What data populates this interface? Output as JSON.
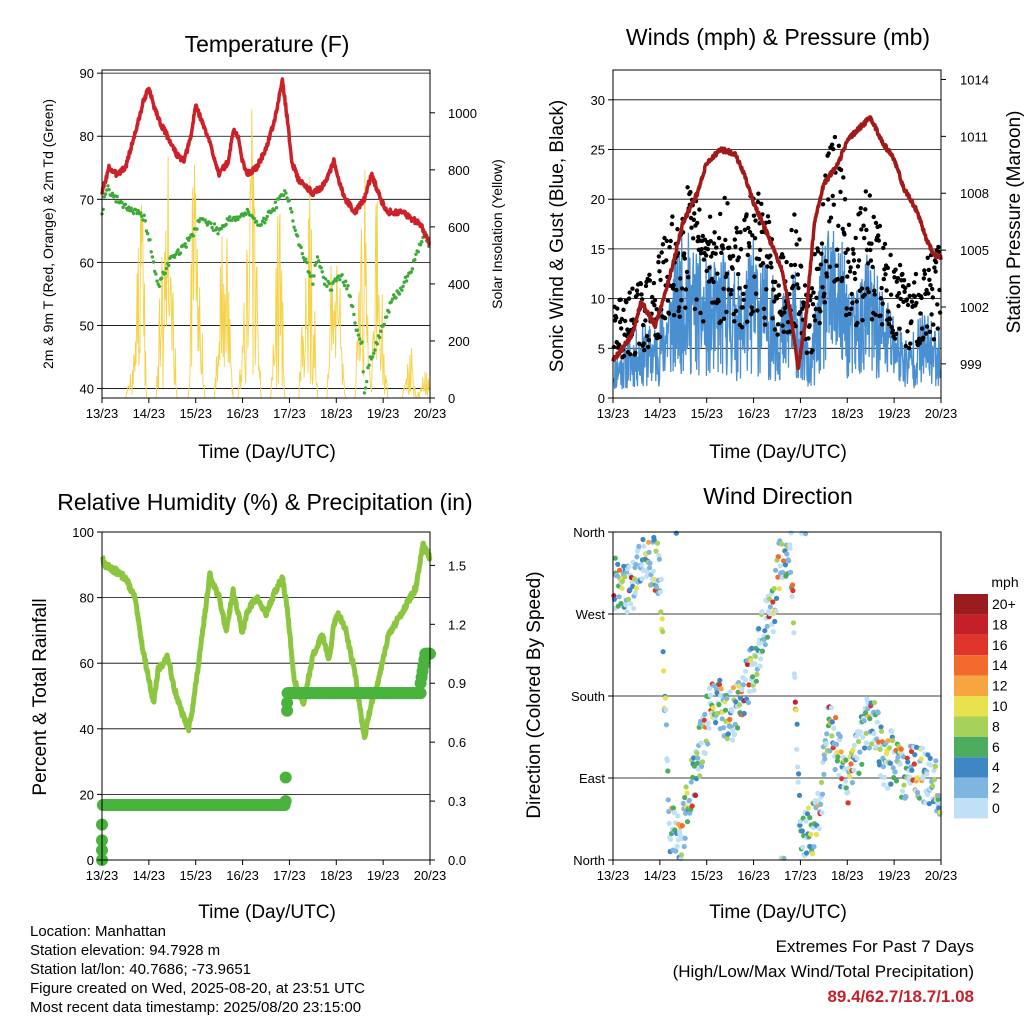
{
  "colors": {
    "temp": "#cc2128",
    "temp9": "#f08030",
    "dew": "#3daa38",
    "solar": "#f5d24a",
    "wind": "#4a8fcf",
    "gust": "#000000",
    "pressure": "#a01a1a",
    "rh": "#8cc640",
    "precip": "#4ab33e",
    "extreme": "#c8202a"
  },
  "x_tick_labels": [
    "13/23",
    "14/23",
    "15/23",
    "16/23",
    "17/23",
    "18/23",
    "19/23",
    "20/23"
  ],
  "panels": {
    "temperature": {
      "title": "Temperature (F)",
      "xlabel": "Time (Day/UTC)",
      "ylabel_left": "2m & 9m T (Red, Orange) & 2m Td (Green)",
      "ylabel_right": "Solar Insolation (Yellow)",
      "left_ticks": [
        "40",
        "50",
        "60",
        "70",
        "80",
        "90"
      ],
      "right_ticks": [
        "0",
        "200",
        "400",
        "600",
        "800",
        "1000"
      ]
    },
    "wind": {
      "title": "Winds (mph) & Pressure (mb)",
      "xlabel": "Time (Day/UTC)",
      "ylabel_left": "Sonic Wind & Gust (Blue, Black)",
      "ylabel_right": "Station Pressure (Maroon)",
      "left_ticks": [
        "0",
        "5",
        "10",
        "15",
        "20",
        "25",
        "30"
      ],
      "right_ticks": [
        "999",
        "1002",
        "1005",
        "1008",
        "1011",
        "1014"
      ]
    },
    "humidity": {
      "title": "Relative Humidity (%) & Precipitation (in)",
      "xlabel": "Time (Day/UTC)",
      "ylabel_left": "Percent & Total Rainfall",
      "left_ticks": [
        "0",
        "20",
        "40",
        "60",
        "80",
        "100"
      ],
      "right_ticks": [
        "0.0",
        "0.3",
        "0.6",
        "0.9",
        "1.2",
        "1.5"
      ]
    },
    "direction": {
      "title": "Wind Direction",
      "xlabel": "Time (Day/UTC)",
      "ylabel_left": "Direction (Colored By Speed)",
      "left_ticks": [
        "North",
        "East",
        "South",
        "West",
        "North"
      ],
      "legend_title": "mph",
      "legend_labels": [
        "20+",
        "18",
        "16",
        "14",
        "12",
        "10",
        "8",
        "6",
        "4",
        "2",
        "0"
      ],
      "legend_colors": [
        "#9b1c1f",
        "#c4202a",
        "#e0352a",
        "#f26a2c",
        "#f7a540",
        "#e8e24e",
        "#a6d25a",
        "#4cad5e",
        "#3f86c4",
        "#7fb6e0",
        "#bfe0f5"
      ]
    }
  },
  "chart_data": [
    {
      "type": "line",
      "title": "Temperature (F)",
      "xlabel": "Time (Day/UTC)",
      "ylabel": "2m & 9m T (Red, Orange) & 2m Td (Green)",
      "y2label": "Solar Insolation (Yellow)",
      "xlim": [
        0,
        7
      ],
      "ylim": [
        38.5,
        90.5
      ],
      "y2lim": [
        0,
        1150
      ],
      "series": [
        {
          "axis": "left",
          "x": [
            0,
            0.15,
            0.3,
            0.5,
            0.65,
            0.8,
            0.9,
            1.0,
            1.1,
            1.25,
            1.4,
            1.6,
            1.75,
            1.9,
            2.0,
            2.1,
            2.3,
            2.5,
            2.7,
            2.8,
            2.9,
            3.0,
            3.1,
            3.3,
            3.5,
            3.7,
            3.85,
            3.95,
            4.05,
            4.2,
            4.5,
            4.7,
            4.85,
            4.95,
            5.05,
            5.2,
            5.4,
            5.6,
            5.75,
            5.85,
            5.95,
            6.1,
            6.4,
            6.6,
            6.8,
            7.0
          ],
          "y": [
            71,
            75,
            74,
            75,
            79,
            83,
            86,
            87.5,
            85,
            82,
            80,
            77,
            76,
            80,
            85,
            83,
            79,
            74,
            76,
            81,
            80,
            76,
            74,
            75,
            78,
            83,
            89,
            83,
            76,
            73,
            71,
            72,
            74,
            76,
            73,
            70,
            68,
            70,
            74,
            72,
            70,
            68,
            68,
            67,
            66,
            63
          ]
        },
        {
          "axis": "left",
          "x": [
            0,
            0.1,
            0.3,
            0.5,
            0.7,
            0.9,
            1.0,
            1.1,
            1.2,
            1.3,
            1.5,
            1.7,
            1.9,
            2.1,
            2.3,
            2.5,
            2.7,
            2.9,
            3.1,
            3.3,
            3.5,
            3.7,
            3.9,
            4.0,
            4.1,
            4.2,
            4.4,
            4.5,
            4.6,
            4.75,
            4.9,
            5.1,
            5.3,
            5.4,
            5.55,
            5.6,
            5.7,
            5.85,
            6.0,
            6.2,
            6.4,
            6.6,
            6.8,
            6.9,
            7.0
          ],
          "y": [
            68,
            72,
            70,
            69,
            68,
            67,
            64,
            60,
            56,
            58,
            61,
            62,
            64,
            67,
            66,
            65,
            67,
            67,
            68,
            66,
            67,
            69,
            71,
            70,
            66,
            63,
            59,
            57,
            61,
            57,
            56,
            58,
            55,
            50,
            47,
            39,
            44,
            47,
            50,
            54,
            56,
            59,
            63,
            65,
            61
          ]
        },
        {
          "axis": "right",
          "x": [
            0.5,
            0.7,
            0.85,
            0.95,
            1.15,
            1.4,
            1.6,
            1.85,
            1.95,
            2.2,
            2.4,
            2.6,
            2.8,
            2.9,
            3.2,
            3.4,
            3.6,
            3.8,
            3.9,
            4.2,
            4.4,
            4.6,
            4.8,
            4.95,
            5.2,
            5.4,
            5.6,
            5.75,
            5.85,
            6.1,
            6.4,
            6.6,
            6.7,
            6.9
          ],
          "y": [
            0,
            180,
            950,
            0,
            0,
            1100,
            0,
            0,
            1000,
            0,
            0,
            880,
            0,
            0,
            1020,
            0,
            0,
            900,
            0,
            0,
            1050,
            0,
            0,
            880,
            0,
            0,
            1000,
            0,
            900,
            0,
            0,
            200,
            0,
            100
          ]
        }
      ]
    },
    {
      "type": "line",
      "title": "Winds (mph) & Pressure (mb)",
      "xlabel": "Time (Day/UTC)",
      "ylabel": "Sonic Wind & Gust (Blue, Black)",
      "y2label": "Station Pressure (Maroon)",
      "xlim": [
        0,
        7
      ],
      "ylim": [
        0,
        33
      ],
      "y2lim": [
        997.2,
        1014.5
      ],
      "series": [
        {
          "axis": "left",
          "x": [
            0,
            0.3,
            0.6,
            0.9,
            1.2,
            1.5,
            1.8,
            2.1,
            2.4,
            2.7,
            3.0,
            3.3,
            3.6,
            3.9,
            4.2,
            4.5,
            4.8,
            5.1,
            5.4,
            5.7,
            6.0,
            6.3,
            6.6,
            6.9
          ],
          "y": [
            3,
            4,
            5,
            5,
            8,
            12,
            10,
            9,
            10,
            8,
            11,
            9,
            7,
            9,
            3,
            11,
            12,
            7,
            10,
            8,
            6,
            4,
            6,
            5
          ]
        },
        {
          "axis": "left",
          "x": [
            0,
            0.3,
            0.6,
            0.9,
            1.2,
            1.5,
            1.8,
            2.1,
            2.4,
            2.7,
            3.0,
            3.3,
            3.6,
            3.9,
            4.2,
            4.5,
            4.8,
            5.1,
            5.4,
            5.7,
            6.0,
            6.3,
            6.6,
            6.9
          ],
          "y": [
            8,
            9,
            10,
            11,
            15,
            19,
            17,
            16,
            17,
            14,
            18,
            16,
            13,
            16,
            8,
            20,
            23,
            14,
            18,
            15,
            12,
            10,
            12,
            13
          ]
        },
        {
          "axis": "right",
          "x": [
            0,
            0.2,
            0.4,
            0.6,
            0.9,
            1.2,
            1.5,
            1.8,
            2.0,
            2.3,
            2.6,
            2.8,
            3.0,
            3.3,
            3.6,
            3.8,
            3.95,
            4.1,
            4.3,
            4.5,
            4.8,
            5.0,
            5.2,
            5.5,
            5.65,
            5.8,
            6.0,
            6.2,
            6.5,
            6.7,
            6.85,
            7.0
          ],
          "y": [
            999.2,
            999.8,
            1000.5,
            1002.3,
            1001.0,
            1003.5,
            1006.5,
            1008.0,
            1009.6,
            1010.3,
            1010.1,
            1009.0,
            1007.5,
            1005.8,
            1004.0,
            1001.5,
            998.8,
            1001.0,
            1006.5,
            1008.5,
            1009.5,
            1010.8,
            1011.3,
            1012.0,
            1011.2,
            1010.5,
            1009.8,
            1008.3,
            1007.0,
            1005.5,
            1004.8,
            1004.6
          ]
        }
      ]
    },
    {
      "type": "line",
      "title": "Relative Humidity (%) & Precipitation (in)",
      "xlabel": "Time (Day/UTC)",
      "ylabel": "Percent & Total Rainfall",
      "xlim": [
        0,
        7
      ],
      "ylim": [
        0,
        100
      ],
      "y2lim": [
        0,
        1.67
      ],
      "series": [
        {
          "axis": "left",
          "x": [
            0,
            0.05,
            0.3,
            0.5,
            0.7,
            0.85,
            1.0,
            1.1,
            1.2,
            1.4,
            1.55,
            1.7,
            1.85,
            1.95,
            2.1,
            2.3,
            2.5,
            2.65,
            2.8,
            3.0,
            3.1,
            3.3,
            3.5,
            3.7,
            3.85,
            3.95,
            4.1,
            4.3,
            4.5,
            4.7,
            4.85,
            4.95,
            5.05,
            5.2,
            5.4,
            5.6,
            5.75,
            5.9,
            6.1,
            6.3,
            6.5,
            6.7,
            6.85,
            7.0
          ],
          "y": [
            93,
            90,
            88,
            86,
            80,
            66,
            55,
            48,
            58,
            62,
            52,
            45,
            40,
            48,
            64,
            87,
            80,
            70,
            82,
            69,
            76,
            80,
            75,
            82,
            86,
            77,
            55,
            48,
            62,
            69,
            61,
            72,
            75,
            70,
            57,
            37,
            48,
            55,
            68,
            73,
            78,
            83,
            96,
            92
          ]
        },
        {
          "axis": "right",
          "x": [
            0,
            0.05,
            0.1,
            1,
            2,
            3,
            3.9,
            3.95,
            4.0,
            5,
            6,
            6.6,
            6.8,
            6.9,
            7.0
          ],
          "y": [
            0.0,
            0.1,
            0.28,
            0.28,
            0.28,
            0.28,
            0.28,
            0.42,
            0.82,
            0.85,
            0.85,
            0.85,
            0.9,
            1.05,
            1.05
          ]
        }
      ]
    },
    {
      "type": "scatter",
      "title": "Wind Direction",
      "xlabel": "Time (Day/UTC)",
      "ylabel": "Direction (Colored By Speed)",
      "xlim": [
        0,
        7
      ],
      "ylim": [
        0,
        360
      ],
      "series": [
        {
          "name": "Direction",
          "x": [
            0.1,
            0.4,
            0.7,
            1.0,
            1.2,
            1.4,
            1.6,
            1.8,
            2.0,
            2.2,
            2.4,
            2.6,
            2.8,
            3.0,
            3.2,
            3.4,
            3.6,
            3.8,
            4.0,
            4.2,
            4.4,
            4.6,
            4.8,
            5.0,
            5.2,
            5.4,
            5.6,
            5.8,
            6.0,
            6.2,
            6.4,
            6.6,
            6.8
          ],
          "y": [
            305,
            300,
            330,
            320,
            40,
            20,
            60,
            110,
            150,
            180,
            150,
            165,
            190,
            210,
            250,
            270,
            340,
            330,
            20,
            30,
            50,
            150,
            120,
            80,
            110,
            150,
            150,
            100,
            120,
            90,
            100,
            95,
            80
          ]
        }
      ]
    }
  ],
  "footer": {
    "meta": [
      "Location: Manhattan",
      "Station elevation: 94.7928 m",
      "Station lat/lon: 40.7686; -73.9651",
      "Figure created on Wed, 2025-08-20, at 23:51 UTC",
      "Most recent data timestamp: 2025/08/20 23:15:00"
    ],
    "extremes_line1": "Extremes For Past 7 Days",
    "extremes_line2": "(High/Low/Max Wind/Total Precipitation)",
    "extremes_value": "89.4/62.7/18.7/1.08"
  }
}
